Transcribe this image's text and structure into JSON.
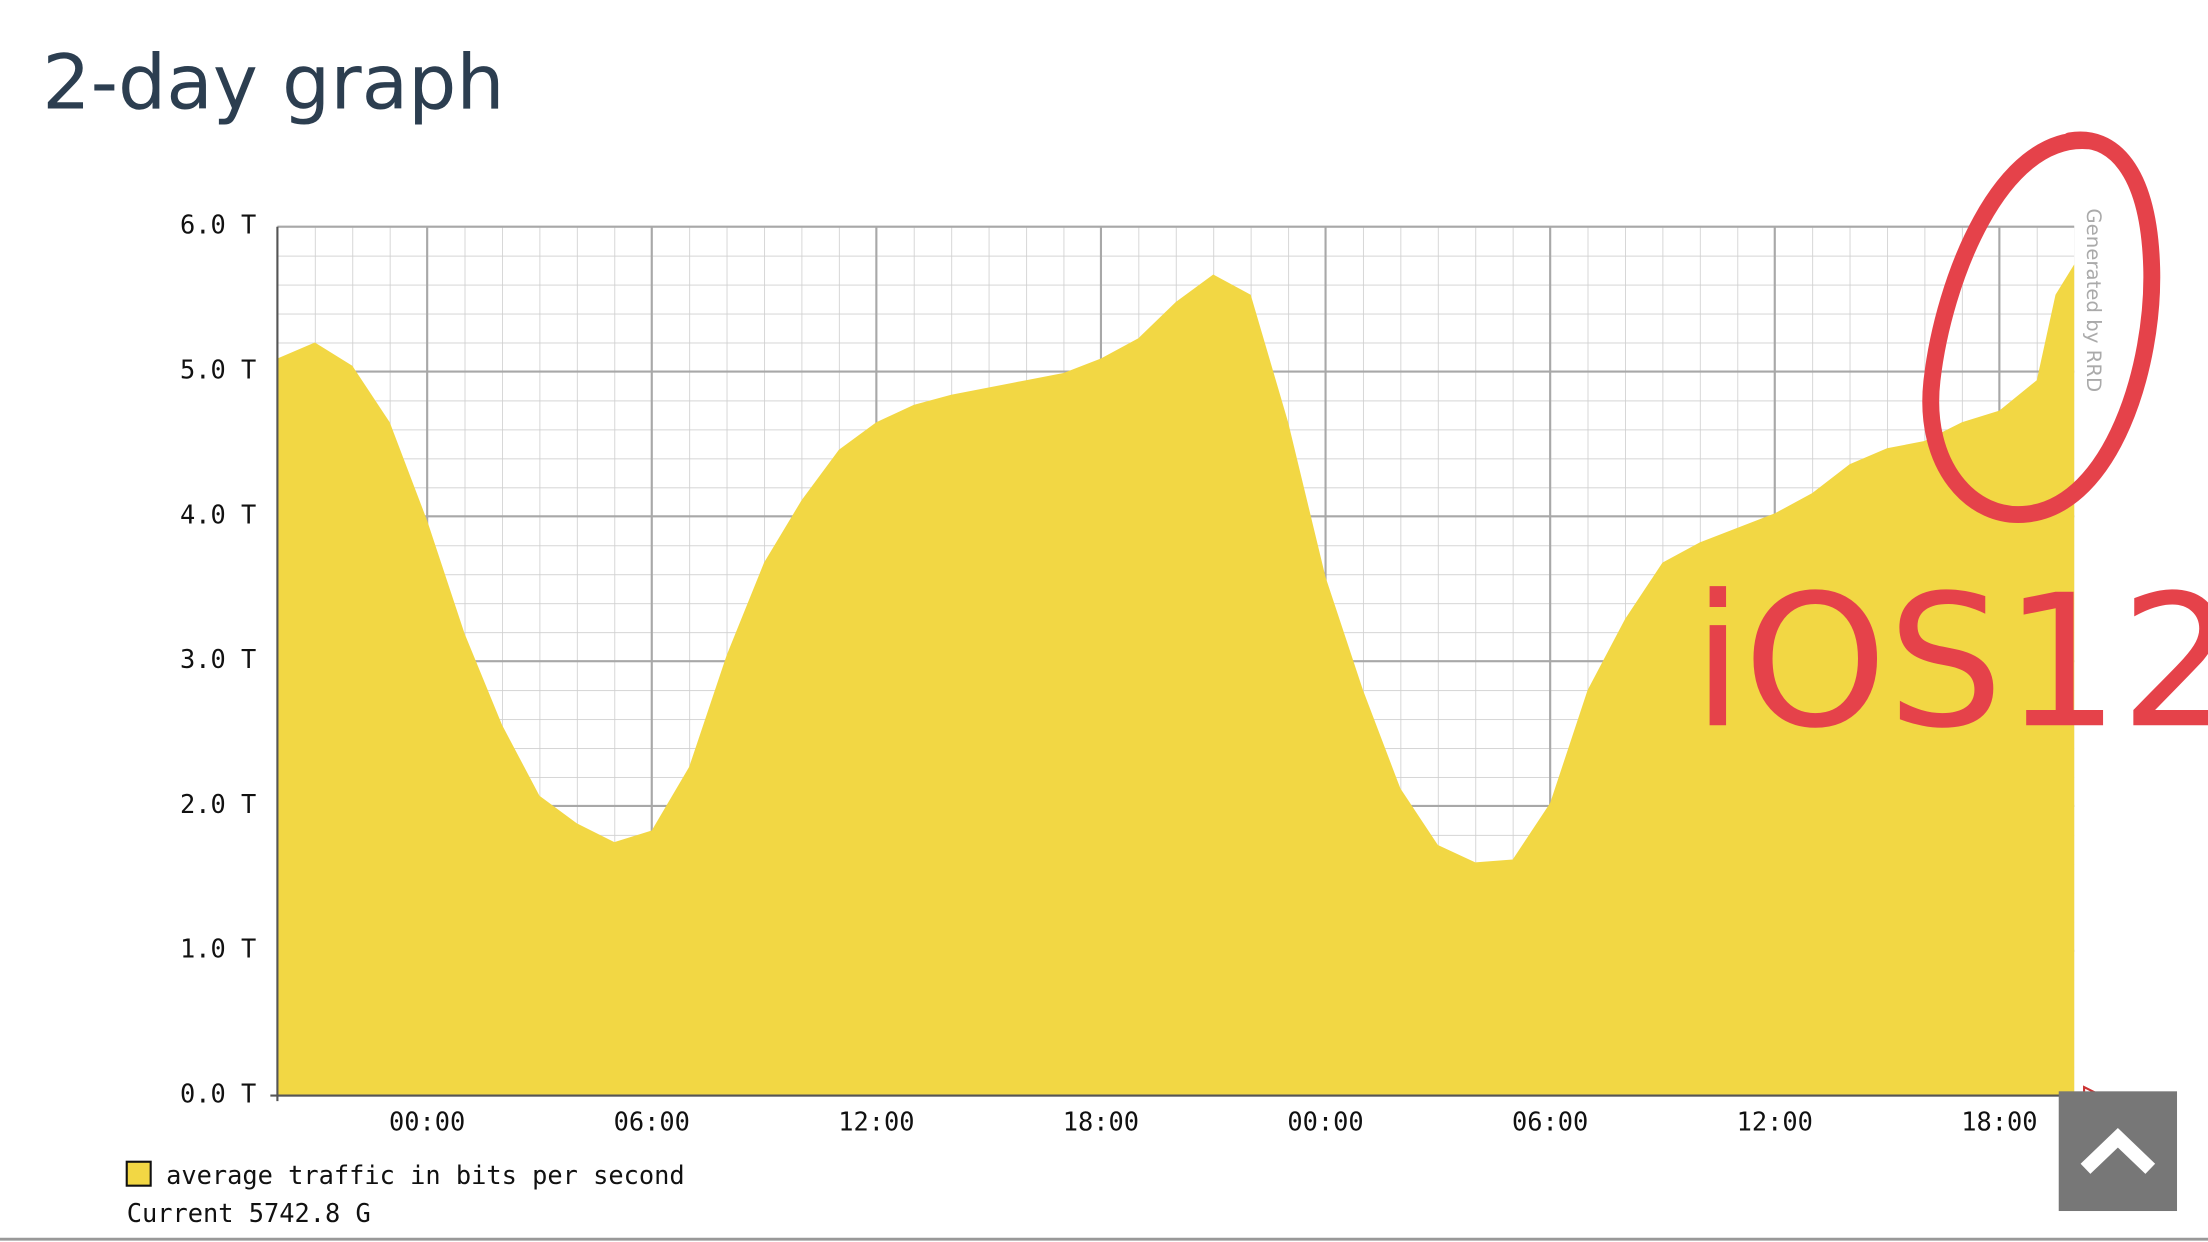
{
  "page_title": "2-day graph",
  "chart_data": {
    "type": "area",
    "x": [
      -4,
      -3,
      -2,
      -1,
      0,
      1,
      2,
      3,
      4,
      5,
      6,
      7,
      8,
      9,
      10,
      11,
      12,
      13,
      14,
      15,
      16,
      17,
      18,
      19,
      20,
      21,
      22,
      23,
      24,
      25,
      26,
      27,
      28,
      29,
      30,
      31,
      32,
      33,
      34,
      35,
      36,
      37,
      38,
      39,
      40,
      41,
      42,
      43,
      43.5,
      44
    ],
    "series": [
      {
        "name": "average traffic in bits per second",
        "color": "#f2d744",
        "values": [
          5.09,
          5.2,
          5.04,
          4.65,
          3.97,
          3.19,
          2.56,
          2.07,
          1.88,
          1.75,
          1.83,
          2.27,
          3.04,
          3.68,
          4.11,
          4.46,
          4.65,
          4.77,
          4.84,
          4.89,
          4.94,
          4.99,
          5.09,
          5.23,
          5.48,
          5.67,
          5.53,
          4.65,
          3.58,
          2.8,
          2.12,
          1.73,
          1.61,
          1.63,
          2.02,
          2.8,
          3.29,
          3.68,
          3.82,
          3.92,
          4.02,
          4.16,
          4.36,
          4.47,
          4.52,
          4.65,
          4.73,
          4.94,
          5.53,
          5.74
        ]
      }
    ],
    "xlim": [
      -4,
      44
    ],
    "xticks": [
      {
        "value": 0,
        "label": "00:00"
      },
      {
        "value": 6,
        "label": "06:00"
      },
      {
        "value": 12,
        "label": "12:00"
      },
      {
        "value": 18,
        "label": "18:00"
      },
      {
        "value": 24,
        "label": "00:00"
      },
      {
        "value": 30,
        "label": "06:00"
      },
      {
        "value": 36,
        "label": "12:00"
      },
      {
        "value": 42,
        "label": "18:00"
      }
    ],
    "ylim": [
      0,
      6
    ],
    "yticks": [
      {
        "value": 0,
        "label": "0.0 T"
      },
      {
        "value": 1,
        "label": "1.0 T"
      },
      {
        "value": 2,
        "label": "2.0 T"
      },
      {
        "value": 3,
        "label": "3.0 T"
      },
      {
        "value": 4,
        "label": "4.0 T"
      },
      {
        "value": 5,
        "label": "5.0 T"
      },
      {
        "value": 6,
        "label": "6.0 T"
      }
    ],
    "grid": true,
    "current_label": "Current 5742.8 G",
    "credit": "Generated by RRD",
    "annotation": "iOS12"
  }
}
